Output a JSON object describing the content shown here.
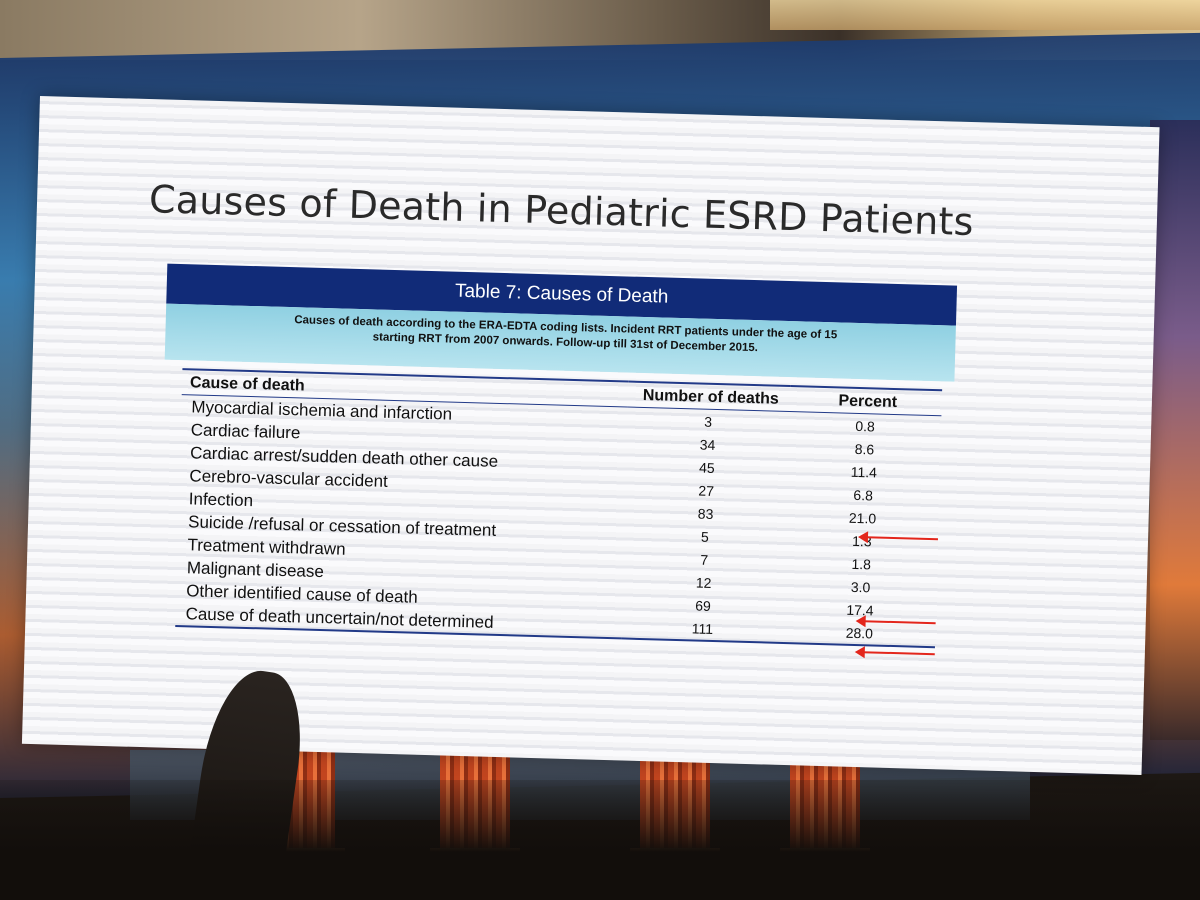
{
  "slide": {
    "title": "Causes of Death in Pediatric ESRD Patients",
    "table": {
      "caption": "Table 7: Causes of Death",
      "subcaption": "Causes of death according to the ERA-EDTA coding lists. Incident RRT patients under the age of 15 starting RRT from 2007 onwards. Follow-up till 31st of December 2015.",
      "headers": {
        "cause": "Cause of death",
        "number": "Number of deaths",
        "percent": "Percent"
      },
      "rows": [
        {
          "cause": "Myocardial ischemia and infarction",
          "number": "3",
          "percent": "0.8"
        },
        {
          "cause": "Cardiac failure",
          "number": "34",
          "percent": "8.6"
        },
        {
          "cause": "Cardiac arrest/sudden death other cause",
          "number": "45",
          "percent": "11.4"
        },
        {
          "cause": "Cerebro-vascular accident",
          "number": "27",
          "percent": "6.8"
        },
        {
          "cause": "Infection",
          "number": "83",
          "percent": "21.0"
        },
        {
          "cause": "Suicide /refusal or cessation of treatment",
          "number": "5",
          "percent": "1.3"
        },
        {
          "cause": "Treatment withdrawn",
          "number": "7",
          "percent": "1.8"
        },
        {
          "cause": "Malignant disease",
          "number": "12",
          "percent": "3.0"
        },
        {
          "cause": "Other identified cause of death",
          "number": "69",
          "percent": "17.4"
        },
        {
          "cause": "Cause of death uncertain/not determined",
          "number": "111",
          "percent": "28.0"
        }
      ]
    },
    "highlighted_rows": [
      "Infection",
      "Other identified cause of death",
      "Cause of death uncertain/not determined"
    ]
  },
  "colors": {
    "table_header": "#112b78",
    "table_subheader": "#8fd0e2",
    "arrow": "#e3261c",
    "slide_background": "#f4f4f6"
  }
}
